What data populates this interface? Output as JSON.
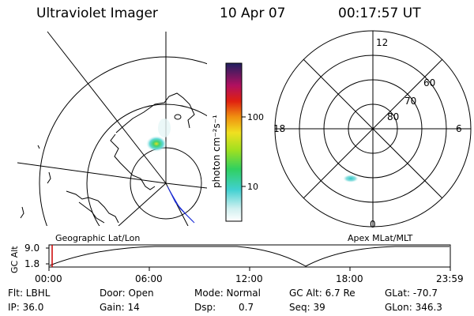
{
  "header": {
    "title": "Ultraviolet Imager",
    "date": "10 Apr 07",
    "time": "00:17:57 UT"
  },
  "colorbar": {
    "label": "photon cm⁻²s⁻¹",
    "ticks": [
      "100",
      "10"
    ]
  },
  "polar_plot": {
    "hour_labels": [
      "12",
      "18",
      "6",
      "0"
    ],
    "lat_labels": [
      "60",
      "70",
      "80"
    ]
  },
  "projection_labels": {
    "left": "Geographic Lat/Lon",
    "right": "Apex MLat/MLT"
  },
  "altitude_plot": {
    "ylabel": "GC Alt",
    "yticks": [
      "9.0",
      "1.8"
    ],
    "xticks": [
      "00:00",
      "06:00",
      "12:00",
      "18:00",
      "23:59"
    ]
  },
  "info": {
    "flt": "Flt: LBHL",
    "ip": "IP: 36.0",
    "door": "Door: Open",
    "gain": "Gain: 14",
    "mode": "Mode: Normal",
    "dsp_label": "Dsp:",
    "dsp_value": "0.7",
    "gcalt": "GC Alt: 6.7 Re",
    "seq": "Seq: 39",
    "glat": "GLat: -70.7",
    "glon": "GLon: 346.3"
  },
  "colors": {
    "line": "#000000",
    "marker": "#cc0000",
    "track": "#1a2bd6"
  }
}
